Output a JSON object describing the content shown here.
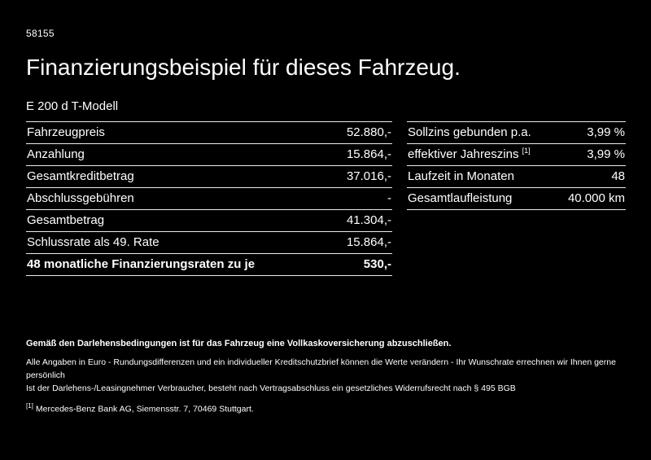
{
  "meta": {
    "doc_id": "58155"
  },
  "header": {
    "title": "Finanzierungsbeispiel für dieses Fahrzeug."
  },
  "vehicle": {
    "model": "E 200 d T-Modell"
  },
  "tables": {
    "finance": {
      "rows": [
        {
          "label": "Fahrzeugpreis",
          "value": "52.880,-"
        },
        {
          "label": "Anzahlung",
          "value": "15.864,-"
        },
        {
          "label": "Gesamtkreditbetrag",
          "value": "37.016,-"
        },
        {
          "label": "Abschlussgebühren",
          "value": "-"
        },
        {
          "label": "Gesamtbetrag",
          "value": "41.304,-"
        },
        {
          "label": "Schlussrate als 49. Rate",
          "value": "15.864,-"
        }
      ],
      "total_row": {
        "label": "48 monatliche Finanzierungsraten zu je",
        "value": "530,-"
      }
    },
    "rates": {
      "rows": [
        {
          "label": "Sollzins gebunden p.a.",
          "marker": "",
          "value": "3,99 %"
        },
        {
          "label": "effektiver Jahreszins",
          "marker": "[1]",
          "value": "3,99 %"
        },
        {
          "label": "Laufzeit in Monaten",
          "marker": "",
          "value": "48"
        },
        {
          "label": "Gesamtlaufleistung",
          "marker": "",
          "value": "40.000 km"
        }
      ]
    }
  },
  "footnotes": {
    "insurance": "Gemäß den Darlehensbedingungen ist für das Fahrzeug eine Vollkaskoversicherung abzuschließen.",
    "rounding": "Alle Angaben in Euro - Rundungsdifferenzen und ein individueller Kreditschutzbrief können die Werte verändern - Ihr Wunschrate errechnen wir Ihnen gerne persönlich",
    "withdrawal": "Ist der Darlehens-/Leasingnehmer Verbraucher, besteht nach Vertragsabschluss ein gesetzliches Widerrufsrecht nach § 495 BGB",
    "bank_marker": "[1]",
    "bank": "Mercedes-Benz Bank AG, Siemensstr. 7, 70469 Stuttgart."
  },
  "colors": {
    "background": "#000000",
    "text": "#ffffff",
    "divider": "#ececec"
  }
}
